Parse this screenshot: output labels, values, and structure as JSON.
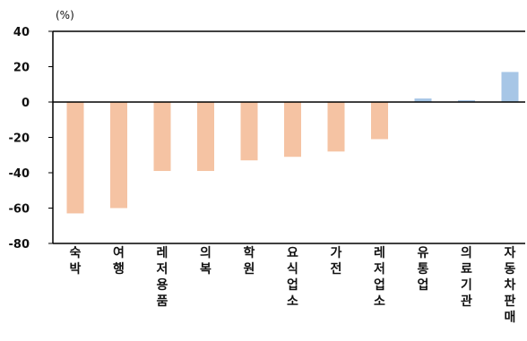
{
  "chart_data": {
    "type": "bar",
    "unit_label": "(%)",
    "categories": [
      "숙박",
      "여행",
      "레저용품",
      "의복",
      "학원",
      "요식업소",
      "가전",
      "레저업소",
      "유통업",
      "의료기관",
      "자동차판매"
    ],
    "values": [
      -63,
      -60,
      -39,
      -39,
      -33,
      -31,
      -28,
      -21,
      2,
      1,
      17
    ],
    "ylim": [
      -80,
      40
    ],
    "yticks": [
      40,
      20,
      0,
      -20,
      -40,
      -60,
      -80
    ],
    "grid": false,
    "colors": {
      "negative": "#f5c3a3",
      "positive": "#a7c6e6",
      "axis": "#000000"
    }
  }
}
